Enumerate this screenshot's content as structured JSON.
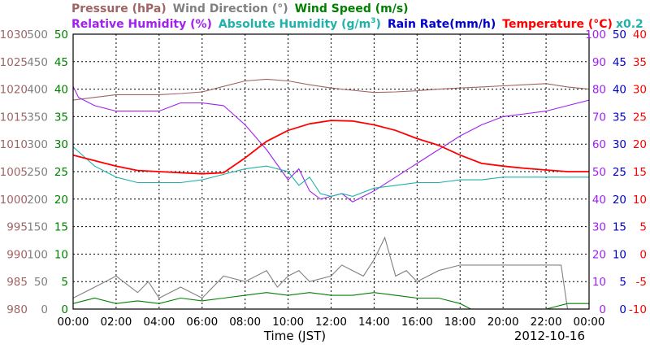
{
  "chart_data": {
    "type": "line",
    "date": "2012-10-16",
    "xlabel": "Time (JST)",
    "x_ticks": [
      "00:00",
      "02:00",
      "04:00",
      "06:00",
      "08:00",
      "10:00",
      "12:00",
      "14:00",
      "16:00",
      "18:00",
      "20:00",
      "22:00",
      "00:00"
    ],
    "x_range_hours": [
      0,
      24
    ],
    "grid": true,
    "headers": {
      "row1": [
        {
          "text": "Pressure (hPa)",
          "color": "#a06464"
        },
        {
          "text": "Wind Direction (°)",
          "color": "#808080"
        },
        {
          "text": "Wind Speed (m/s)",
          "color": "#008000"
        }
      ],
      "row2": [
        {
          "text": "Relative Humidity (%)",
          "color": "#a020f0"
        },
        {
          "text": "Absolute Humidity (g/m",
          "sup": "3",
          "suffix": ")",
          "color": "#20b2aa"
        },
        {
          "text": "Rain Rate(mm/h)",
          "color": "#0000cd"
        },
        {
          "text": "Temperature (°C)",
          "color": "#ff0000"
        }
      ],
      "scale_note": {
        "text": "x0.2",
        "color": "#20b2aa"
      }
    },
    "axes": [
      {
        "name": "Pressure (hPa)",
        "side": "left",
        "color": "#a06464",
        "range": [
          980,
          1030
        ],
        "ticks": [
          "1030",
          "1025",
          "1020",
          "1015",
          "1010",
          "1005",
          "1000",
          "995",
          "990",
          "985",
          "980"
        ]
      },
      {
        "name": "Wind Direction (°)",
        "side": "left",
        "color": "#808080",
        "range": [
          0,
          500
        ],
        "ticks": [
          "500",
          "450",
          "400",
          "350",
          "300",
          "250",
          "200",
          "150",
          "100",
          "50",
          "0"
        ]
      },
      {
        "name": "Wind Speed (m/s)",
        "side": "left",
        "color": "#008000",
        "range": [
          0,
          50
        ],
        "ticks": [
          "50",
          "45",
          "40",
          "35",
          "30",
          "25",
          "20",
          "15",
          "10",
          "5",
          "0"
        ]
      },
      {
        "name": "Relative Humidity (%)",
        "side": "right",
        "color": "#a020f0",
        "range": [
          0,
          100
        ],
        "ticks": [
          "100",
          "90",
          "80",
          "70",
          "60",
          "50",
          "40",
          "30",
          "20",
          "10",
          "0"
        ]
      },
      {
        "name": "Rain Rate(mm/h)",
        "side": "right",
        "color": "#0000cd",
        "range": [
          0,
          50
        ],
        "ticks": [
          "50",
          "45",
          "40",
          "35",
          "30",
          "25",
          "20",
          "15",
          "10",
          "5",
          "0"
        ]
      },
      {
        "name": "Temperature (°C)",
        "side": "right",
        "color": "#ff0000",
        "range": [
          -10,
          40
        ],
        "ticks": [
          "40",
          "35",
          "30",
          "25",
          "20",
          "15",
          "10",
          "5",
          "0",
          "-5",
          "-10"
        ]
      }
    ],
    "series": [
      {
        "name": "Pressure (hPa)",
        "axis": 0,
        "color": "#a06464",
        "x": [
          0,
          1,
          2,
          3,
          4,
          5,
          6,
          7,
          8,
          9,
          10,
          11,
          12,
          13,
          14,
          15,
          16,
          17,
          18,
          19,
          20,
          21,
          22,
          23,
          24
        ],
        "y": [
          1018,
          1018.5,
          1019,
          1019,
          1019,
          1019.2,
          1019.5,
          1020.5,
          1021.5,
          1021.8,
          1021.5,
          1020.8,
          1020.2,
          1019.8,
          1019.4,
          1019.5,
          1019.7,
          1020,
          1020.2,
          1020.4,
          1020.6,
          1020.8,
          1021,
          1020.4,
          1020
        ]
      },
      {
        "name": "Relative Humidity (%)",
        "axis": 3,
        "color": "#a020f0",
        "x": [
          0,
          0.25,
          1,
          2,
          3,
          4,
          5,
          6,
          7,
          8,
          9,
          10,
          10.5,
          11,
          11.5,
          12,
          12.5,
          13,
          13.5,
          14,
          15,
          16,
          17,
          18,
          19,
          20,
          21,
          22,
          23,
          24
        ],
        "y": [
          81,
          77,
          74,
          72,
          72,
          72,
          75,
          75,
          74,
          67,
          58,
          47,
          51,
          43,
          40,
          41,
          42,
          39,
          41,
          43,
          48,
          53,
          58,
          63,
          67,
          70,
          71,
          72,
          74,
          76
        ]
      },
      {
        "name": "Absolute Humidity (g/m3)",
        "axis": 3,
        "color": "#20b2aa",
        "scale": 0.2,
        "x": [
          0,
          1,
          2,
          3,
          4,
          5,
          6,
          7,
          8,
          9,
          10,
          10.5,
          11,
          11.5,
          12,
          12.5,
          13,
          14,
          15,
          16,
          17,
          18,
          19,
          20,
          21,
          22,
          23,
          24
        ],
        "y": [
          59,
          52,
          48,
          46,
          46,
          46,
          47,
          49,
          51,
          52,
          50,
          45,
          48,
          42,
          41,
          42,
          41,
          44,
          45,
          46,
          46,
          47,
          47,
          48,
          48,
          48,
          48,
          48
        ]
      },
      {
        "name": "Rain Rate(mm/h)",
        "axis": 4,
        "color": "#0000cd",
        "x": [
          0,
          24
        ],
        "y": [
          0,
          0
        ]
      },
      {
        "name": "Temperature (°C)",
        "axis": 5,
        "color": "#ff0000",
        "x": [
          0,
          1,
          2,
          3,
          4,
          5,
          6,
          7,
          8,
          9,
          10,
          11,
          12,
          13,
          14,
          15,
          16,
          17,
          18,
          19,
          20,
          21,
          22,
          23,
          24
        ],
        "y": [
          18,
          17,
          16,
          15.2,
          15,
          14.8,
          14.6,
          14.8,
          17.5,
          20.5,
          22.5,
          23.7,
          24.3,
          24.2,
          23.5,
          22.5,
          21,
          19.8,
          18,
          16.5,
          16,
          15.6,
          15.3,
          15,
          15
        ]
      },
      {
        "name": "Wind Direction (°)",
        "axis": 1,
        "color": "#808080",
        "x": [
          0,
          1,
          2,
          3,
          3.5,
          4,
          5,
          6,
          7,
          8,
          9,
          9.5,
          10,
          10.5,
          11,
          12,
          12.5,
          13,
          13.5,
          14,
          14.5,
          15,
          15.5,
          16,
          17,
          18,
          19,
          20,
          21,
          22,
          22.7,
          23,
          24
        ],
        "y": [
          20,
          40,
          60,
          30,
          50,
          20,
          40,
          20,
          60,
          50,
          70,
          40,
          60,
          70,
          50,
          60,
          80,
          70,
          60,
          90,
          130,
          60,
          70,
          50,
          70,
          80,
          80,
          80,
          80,
          80,
          80,
          0,
          0
        ]
      },
      {
        "name": "Wind Speed (m/s)",
        "axis": 2,
        "color": "#008000",
        "x": [
          0,
          1,
          2,
          3,
          4,
          5,
          6,
          7,
          8,
          9,
          10,
          11,
          12,
          13,
          14,
          15,
          16,
          17,
          18,
          18.5,
          19,
          20,
          21,
          22,
          23,
          24
        ],
        "y": [
          1,
          2,
          1,
          1.5,
          1,
          2,
          1.5,
          2,
          2.5,
          3,
          2.5,
          3,
          2.5,
          2.5,
          3,
          2.5,
          2,
          2,
          1,
          0,
          0,
          0,
          0,
          0,
          1,
          1
        ]
      }
    ]
  }
}
